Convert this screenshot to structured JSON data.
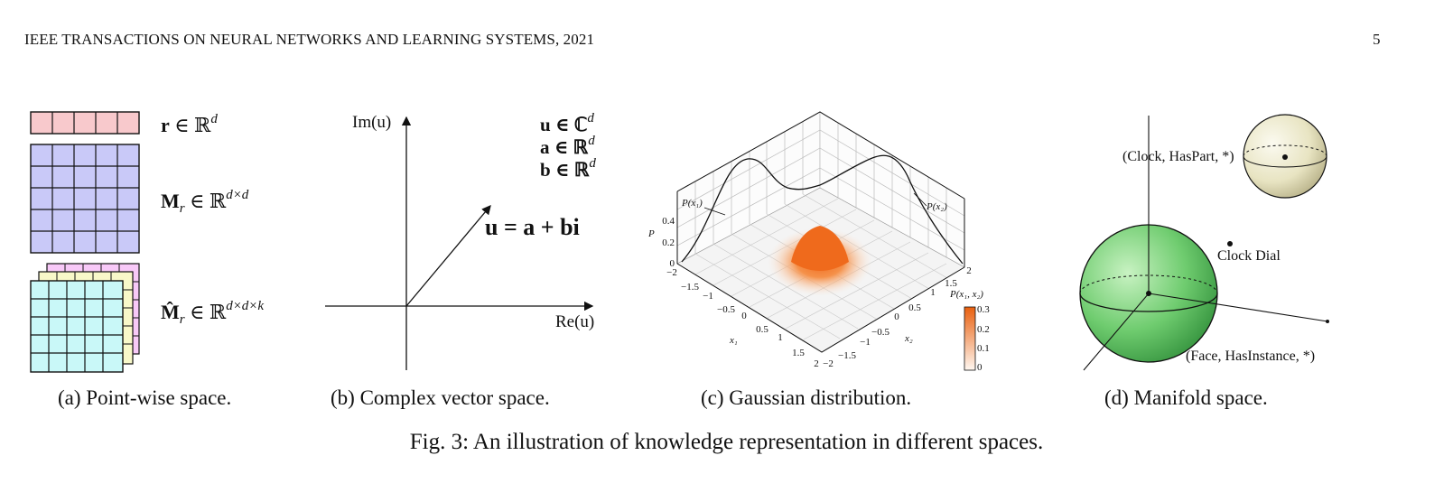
{
  "header": {
    "running_title": "IEEE TRANSACTIONS ON NEURAL NETWORKS AND LEARNING SYSTEMS, 2021",
    "page_number": "5"
  },
  "colors": {
    "row_pink": "#f8c9cc",
    "matrix_purple": "#c9c9f8",
    "tensor_cyan": "#c9f8f8",
    "tensor_yellow": "#f8f8c9",
    "tensor_magenta": "#f8c9f8",
    "gauss_orange": "#ef6a1c",
    "sphere_green": "#6fcc6f",
    "sphere_cream": "#e8e4c2"
  },
  "panel_a": {
    "caption": "(a) Point-wise space.",
    "label_r": {
      "bold": "r",
      "rest": " ∈ ℝ",
      "sup": "d"
    },
    "label_M": {
      "bold": "M",
      "sub": "r",
      "rest": " ∈ ℝ",
      "sup": "d×d"
    },
    "label_Mhat": {
      "bold": "M̂",
      "sub": "r",
      "rest": " ∈ ℝ",
      "sup": "d×d×k"
    }
  },
  "panel_b": {
    "caption": "(b) Complex vector space.",
    "y_axis_label": "Im(u)",
    "x_axis_label": "Re(u)",
    "legend": [
      "u ∈ ℂ",
      "a ∈ ℝ",
      "b ∈ ℝ"
    ],
    "legend_sup": "d",
    "equation": "u = a + bi"
  },
  "panel_c": {
    "caption": "(c) Gaussian distribution.",
    "z_axis_label": "P",
    "z_ticks": [
      "0",
      "0.2",
      "0.4"
    ],
    "x1_label": "x₁",
    "x2_label": "x₂",
    "x1_ticks": [
      "−2",
      "−1.5",
      "−1",
      "−0.5",
      "0",
      "0.5",
      "1",
      "1.5",
      "2"
    ],
    "x2_ticks": [
      "−2",
      "−1.5",
      "−1",
      "−0.5",
      "0",
      "0.5",
      "1",
      "1.5",
      "2"
    ],
    "marginal_labels": [
      "P(x₁)",
      "P(x₂)"
    ],
    "colorbar_title": "P(x₁, x₂)",
    "colorbar_ticks": [
      "0.3",
      "0.2",
      "0.1",
      "0"
    ]
  },
  "panel_d": {
    "caption": "(d) Manifold space.",
    "labels": [
      "(Clock, HasPart, *)",
      "Clock Dial",
      "(Face, HasInstance, *)"
    ]
  },
  "figure_caption": "Fig. 3: An illustration of knowledge representation in different spaces."
}
